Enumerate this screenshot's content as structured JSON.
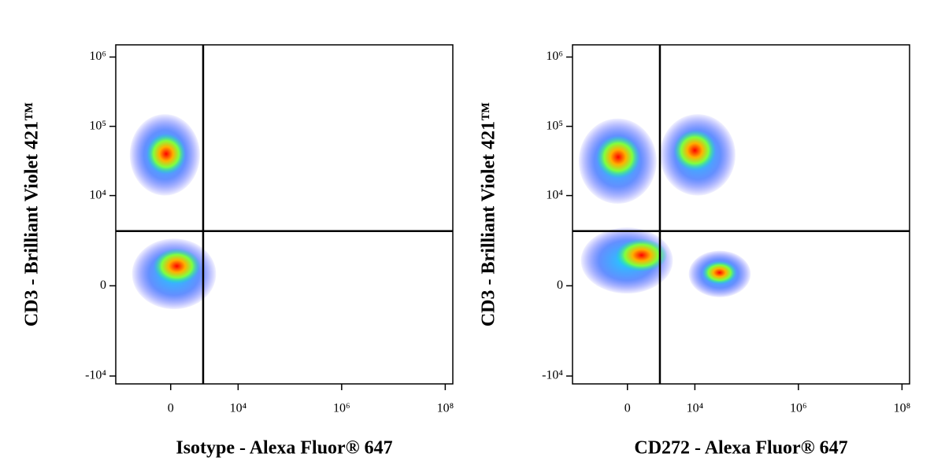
{
  "chart_data": [
    {
      "type": "density",
      "x_label": "Isotype - Alexa Fluor® 647",
      "y_label": "CD3 - Brilliant Violet 421™",
      "xlim": [
        -5700,
        140000000
      ],
      "ylim": [
        -13000,
        1500000
      ],
      "xticks": [
        0,
        {
          "value": 10000,
          "label": "10⁴"
        },
        {
          "value": 1000000,
          "label": "10⁶"
        },
        {
          "value": 100000000,
          "label": "10⁸"
        }
      ],
      "yticks": [
        {
          "value": -10000,
          "label": "-10⁴"
        },
        0,
        {
          "value": 10000,
          "label": "10⁴"
        },
        {
          "value": 100000,
          "label": "10⁵"
        },
        {
          "value": 1000000,
          "label": "10⁶"
        }
      ],
      "x_gate": 2000,
      "y_gate": 3000,
      "populations": [
        {
          "x": -200,
          "y": 40000,
          "x_range": [
            -3000,
            1700
          ],
          "y_range": [
            10000,
            150000
          ]
        },
        {
          "x": 280,
          "y": 700,
          "x_range": [
            -2700,
            3700
          ],
          "y_range": [
            -860,
            2300
          ]
        }
      ]
    },
    {
      "type": "density",
      "x_label": "CD272 - Alexa Fluor® 647",
      "y_label": "CD3 - Brilliant Violet 421™",
      "xlim": [
        -5700,
        140000000
      ],
      "ylim": [
        -13000,
        1500000
      ],
      "xticks": [
        0,
        {
          "value": 10000,
          "label": "10⁴"
        },
        {
          "value": 1000000,
          "label": "10⁶"
        },
        {
          "value": 100000000,
          "label": "10⁸"
        }
      ],
      "yticks": [
        {
          "value": -10000,
          "label": "-10⁴"
        },
        0,
        {
          "value": 10000,
          "label": "10⁴"
        },
        {
          "value": 100000,
          "label": "10⁵"
        },
        {
          "value": 1000000,
          "label": "10⁶"
        }
      ],
      "x_gate": 2000,
      "y_gate": 3000,
      "populations": [
        {
          "x": -420,
          "y": 36000,
          "x_range": [
            -4300,
            1700
          ],
          "y_range": [
            7600,
            130000
          ]
        },
        {
          "x": 10000,
          "y": 45000,
          "x_range": [
            2000,
            61000
          ],
          "y_range": [
            10000,
            150000
          ]
        },
        {
          "x": 670,
          "y": 1200,
          "x_range": [
            -3900,
            3700
          ],
          "y_range": [
            -260,
            3400
          ]
        },
        {
          "x": 30000,
          "y": 450,
          "x_range": [
            7600,
            120000
          ],
          "y_range": [
            -390,
            1450
          ]
        }
      ]
    }
  ]
}
